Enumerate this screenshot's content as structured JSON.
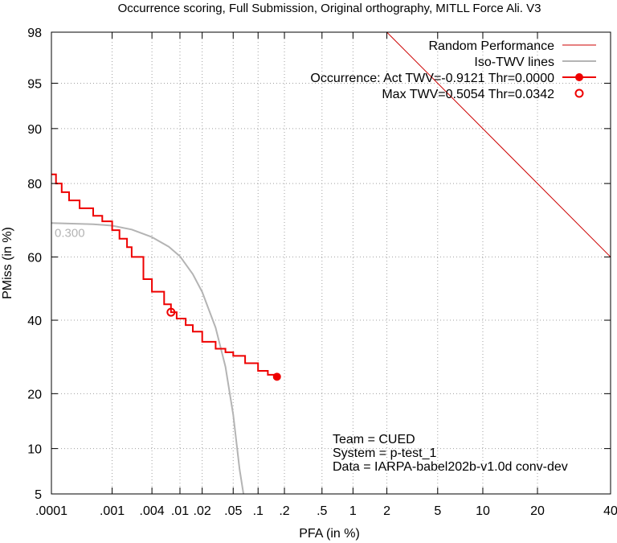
{
  "chart_data": {
    "type": "line",
    "title": "Occurrence scoring, Full Submission, Original orthography, MITLL Force Ali. V3",
    "xlabel": "PFA (in %)",
    "ylabel": "PMiss (in %)",
    "x_scale": "normal-deviate",
    "y_scale": "normal-deviate",
    "xlim": [
      0.0001,
      40
    ],
    "ylim": [
      5,
      98
    ],
    "grid": true,
    "legend_position": "top-right",
    "x_ticks": [
      {
        "value": 0.0001,
        "label": ".0001"
      },
      {
        "value": 0.001,
        "label": ".001"
      },
      {
        "value": 0.004,
        "label": ".004"
      },
      {
        "value": 0.01,
        "label": ".01"
      },
      {
        "value": 0.02,
        "label": ".02"
      },
      {
        "value": 0.05,
        "label": ".05"
      },
      {
        "value": 0.1,
        "label": ".1"
      },
      {
        "value": 0.2,
        "label": ".2"
      },
      {
        "value": 0.5,
        "label": ".5"
      },
      {
        "value": 1,
        "label": "1"
      },
      {
        "value": 2,
        "label": "2"
      },
      {
        "value": 5,
        "label": "5"
      },
      {
        "value": 10,
        "label": "10"
      },
      {
        "value": 20,
        "label": "20"
      },
      {
        "value": 40,
        "label": "40"
      }
    ],
    "y_ticks": [
      {
        "value": 5,
        "label": "5"
      },
      {
        "value": 10,
        "label": "10"
      },
      {
        "value": 20,
        "label": "20"
      },
      {
        "value": 40,
        "label": "40"
      },
      {
        "value": 60,
        "label": "60"
      },
      {
        "value": 80,
        "label": "80"
      },
      {
        "value": 90,
        "label": "90"
      },
      {
        "value": 95,
        "label": "95"
      },
      {
        "value": 98,
        "label": "98"
      }
    ],
    "series": [
      {
        "name": "Random Performance",
        "color": "#cc0000",
        "style": "thin-line",
        "x": [
          2,
          40
        ],
        "y": [
          98,
          60
        ]
      },
      {
        "name": "Iso-TWV lines",
        "color": "#b4b4b4",
        "style": "line",
        "label": "0.300",
        "x": [
          0.0001,
          0.0005,
          0.001,
          0.002,
          0.004,
          0.007,
          0.01,
          0.015,
          0.02,
          0.03,
          0.04,
          0.05,
          0.06,
          0.07
        ],
        "y": [
          70,
          69.7,
          69.3,
          68.2,
          66,
          63.1,
          60.2,
          54.6,
          48.9,
          37.7,
          26.6,
          15.6,
          7.4,
          4.2
        ]
      },
      {
        "name": "Occurrence: Act  TWV=-0.9121  Thr=0.0000",
        "color": "#ee0000",
        "style": "line-with-point",
        "x": [
          0.0001,
          0.00012,
          0.00015,
          0.0002,
          0.0003,
          0.0005,
          0.0007,
          0.001,
          0.0013,
          0.0017,
          0.002,
          0.003,
          0.004,
          0.006,
          0.0075,
          0.009,
          0.012,
          0.015,
          0.02,
          0.03,
          0.04,
          0.05,
          0.07,
          0.1,
          0.13,
          0.165
        ],
        "y": [
          82,
          80,
          78,
          76,
          74,
          72,
          70.5,
          68,
          65.5,
          63,
          60,
          53,
          49,
          45,
          42.5,
          40.5,
          38.5,
          36.5,
          33.5,
          31.5,
          30.5,
          29.5,
          27.5,
          25.5,
          24.5,
          24.0
        ],
        "point": {
          "x": 0.165,
          "y": 24.0,
          "marker": "filled-circle"
        }
      },
      {
        "name": "Max  TWV=0.5054  Thr=0.0342",
        "color": "#ee0000",
        "style": "point",
        "point": {
          "x": 0.0075,
          "y": 42.5,
          "marker": "open-circle"
        }
      }
    ],
    "info_text": [
      "Team = CUED",
      "System = p-test_1",
      "Data = IARPA-babel202b-v1.0d conv-dev"
    ]
  }
}
